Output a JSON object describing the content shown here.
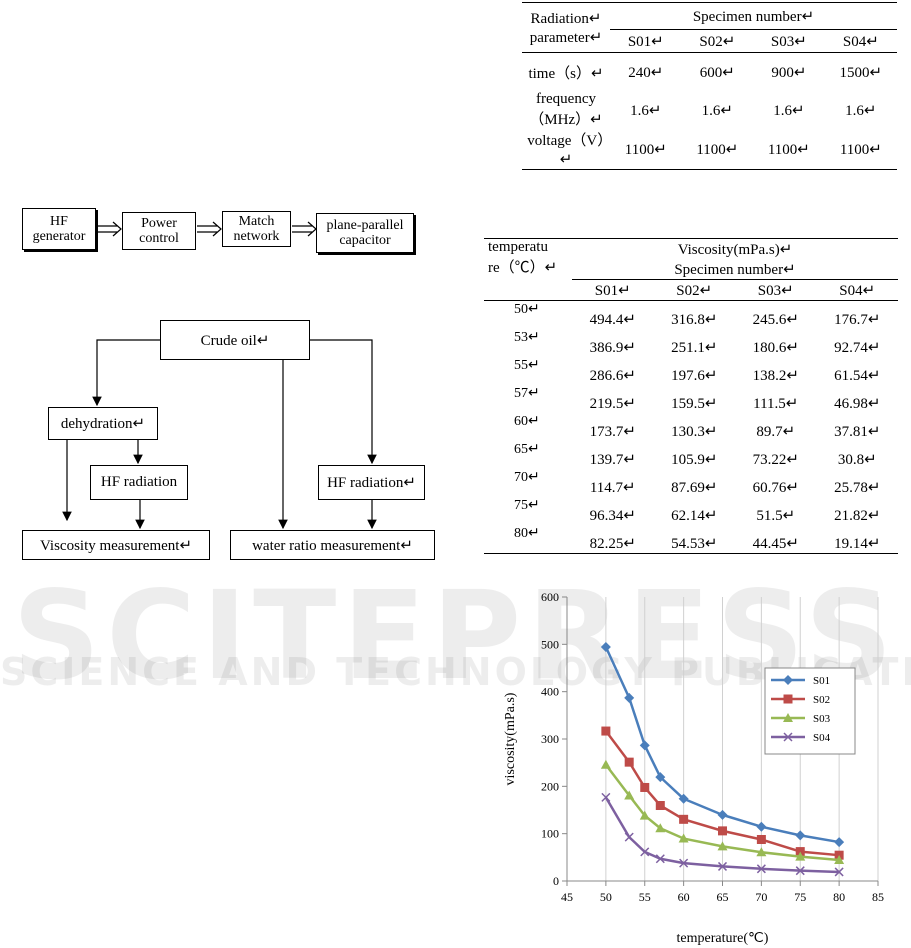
{
  "table1": {
    "header": {
      "parameter": "Radiation↵\nparameter↵",
      "group": "Specimen number↵",
      "columns": [
        "S01↵",
        "S02↵",
        "S03↵",
        "S04↵"
      ]
    },
    "rows": [
      [
        "time（s）↵",
        "240↵",
        "600↵",
        "900↵",
        "1500↵"
      ],
      [
        "frequency（MHz）↵",
        "1.6↵",
        "1.6↵",
        "1.6↵",
        "1.6↵"
      ],
      [
        "voltage（V）↵",
        "1100↵",
        "1100↵",
        "1100↵",
        "1100↵"
      ]
    ]
  },
  "block_diagram": {
    "nodes": [
      {
        "label": "HF\ngenerator"
      },
      {
        "label": "Power\ncontrol"
      },
      {
        "label": "Match\nnetwork"
      },
      {
        "label": "plane-parallel\ncapacitor"
      }
    ]
  },
  "flowchart": {
    "nodes": [
      {
        "label": "Crude  oil↵"
      },
      {
        "label": "dehydration↵"
      },
      {
        "label": "HF radiation"
      },
      {
        "label": "HF radiation↵"
      },
      {
        "label": "Viscosity measurement↵"
      },
      {
        "label": "water ratio measurement↵"
      }
    ]
  },
  "table2": {
    "header": {
      "temperature": "temperatu\nre（℃）↵",
      "quantity": "Viscosity(mPa.s)↵",
      "group": "Specimen number↵",
      "columns": [
        "S01↵",
        "S02↵",
        "S03↵",
        "S04↵"
      ]
    },
    "rows": [
      [
        "50↵",
        "494.4↵",
        "316.8↵",
        "245.6↵",
        "176.7↵"
      ],
      [
        "53↵",
        "386.9↵",
        "251.1↵",
        "180.6↵",
        "92.74↵"
      ],
      [
        "55↵",
        "286.6↵",
        "197.6↵",
        "138.2↵",
        "61.54↵"
      ],
      [
        "57↵",
        "219.5↵",
        "159.5↵",
        "111.5↵",
        "46.98↵"
      ],
      [
        "60↵",
        "173.7↵",
        "130.3↵",
        "89.7↵",
        "37.81↵"
      ],
      [
        "65↵",
        "139.7↵",
        "105.9↵",
        "73.22↵",
        "30.8↵"
      ],
      [
        "70↵",
        "114.7↵",
        "87.69↵",
        "60.76↵",
        "25.78↵"
      ],
      [
        "75↵",
        "96.34↵",
        "62.14↵",
        "51.5↵",
        "21.82↵"
      ],
      [
        "80↵",
        "82.25↵",
        "54.53↵",
        "44.45↵",
        "19.14↵"
      ]
    ]
  },
  "watermark": {
    "title": "SCITEPRESS",
    "subtitle": "SCIENCE AND TECHNOLOGY PUBLICATIONS"
  },
  "chart_data": {
    "type": "line",
    "xlabel": "temperature(℃)",
    "ylabel": "viscosity(mPa.s)",
    "x": [
      50,
      53,
      55,
      57,
      60,
      65,
      70,
      75,
      80
    ],
    "xlim": [
      45,
      85
    ],
    "xticks": [
      45,
      50,
      55,
      60,
      65,
      70,
      75,
      80,
      85
    ],
    "ylim": [
      0,
      600
    ],
    "yticks": [
      0,
      100,
      200,
      300,
      400,
      500,
      600
    ],
    "grid": "x",
    "legend": "right",
    "series": [
      {
        "name": "S01",
        "color": "#4a7ebb",
        "marker": "diamond",
        "values": [
          494.4,
          386.9,
          286.6,
          219.5,
          173.7,
          139.7,
          114.7,
          96.34,
          82.25
        ]
      },
      {
        "name": "S02",
        "color": "#be4b48",
        "marker": "square",
        "values": [
          316.8,
          251.1,
          197.6,
          159.5,
          130.3,
          105.9,
          87.69,
          62.14,
          54.53
        ]
      },
      {
        "name": "S03",
        "color": "#98b954",
        "marker": "triangle",
        "values": [
          245.6,
          180.6,
          138.2,
          111.5,
          89.7,
          73.22,
          60.76,
          51.5,
          44.45
        ]
      },
      {
        "name": "S04",
        "color": "#7d60a0",
        "marker": "cross",
        "values": [
          176.7,
          92.74,
          61.54,
          46.98,
          37.81,
          30.8,
          25.78,
          21.82,
          19.14
        ]
      }
    ]
  }
}
